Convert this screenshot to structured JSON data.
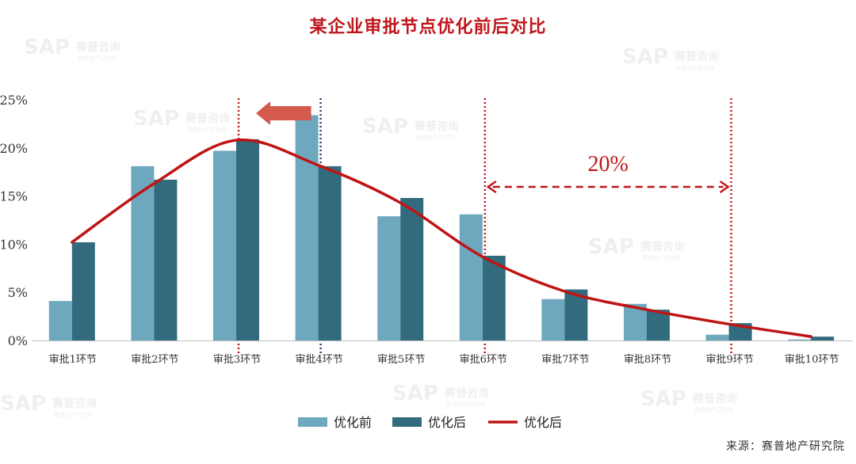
{
  "chart_data": {
    "type": "bar",
    "title": "某企业审批节点优化前后对比",
    "categories": [
      "审批1环节",
      "审批2环节",
      "审批3环节",
      "审批4环节",
      "审批5环节",
      "审批6环节",
      "审批7环节",
      "审批8环节",
      "审批9环节",
      "审批10环节"
    ],
    "series": [
      {
        "name": "优化前",
        "type": "bar",
        "color": "#6ea8bf",
        "values": [
          4.1,
          18.1,
          19.7,
          23.4,
          12.9,
          13.1,
          4.3,
          3.8,
          0.6,
          0.1
        ]
      },
      {
        "name": "优化后",
        "type": "bar",
        "color": "#336b7e",
        "values": [
          10.2,
          16.7,
          20.9,
          18.1,
          14.8,
          8.8,
          5.3,
          3.2,
          1.8,
          0.4
        ]
      },
      {
        "name": "优化后",
        "type": "line",
        "color": "#bf1414",
        "values": [
          10.2,
          16.3,
          20.8,
          18.2,
          14.3,
          8.7,
          5.1,
          3.2,
          1.7,
          0.4
        ]
      }
    ],
    "ylim": [
      0,
      25
    ],
    "yticks": [
      "0%",
      "5%",
      "10%",
      "15%",
      "20%",
      "25%"
    ],
    "yticks_values": [
      0,
      5,
      10,
      15,
      20,
      25
    ],
    "grid": false,
    "legend_position": "bottom",
    "annotations": {
      "bracket_label": "20%",
      "bracket_from_category": 5,
      "bracket_to_category": 8,
      "arrow_from_category": 3,
      "arrow_to_category": 2
    }
  },
  "source": "来源：赛普地产研究院",
  "watermark": {
    "brand": "SAP",
    "cn": "赛普咨询",
    "sub": "赛普地产研究院"
  },
  "colors": {
    "title": "#c0161b",
    "axis": "#bfbfbf",
    "guide_red": "#c0161b",
    "guide_blue": "#27436b",
    "arrow": "#d45a4e"
  }
}
